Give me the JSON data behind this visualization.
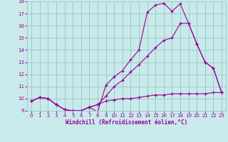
{
  "bg_color": "#c8eaea",
  "grid_color": "#a0c8c8",
  "line_color": "#990099",
  "marker": "+",
  "xlabel": "Windchill (Refroidissement éolien,°C)",
  "xlim": [
    -0.5,
    23.5
  ],
  "ylim": [
    9,
    18
  ],
  "xticks": [
    0,
    1,
    2,
    3,
    4,
    5,
    6,
    7,
    8,
    9,
    10,
    11,
    12,
    13,
    14,
    15,
    16,
    17,
    18,
    19,
    20,
    21,
    22,
    23
  ],
  "yticks": [
    9,
    10,
    11,
    12,
    13,
    14,
    15,
    16,
    17,
    18
  ],
  "series": [
    {
      "x": [
        0,
        1,
        2,
        3,
        4,
        5,
        6,
        7,
        8,
        9,
        10,
        11,
        12,
        13,
        14,
        15,
        16,
        17,
        18,
        19,
        20,
        21,
        22,
        23
      ],
      "y": [
        9.8,
        10.1,
        10.0,
        9.5,
        9.1,
        9.0,
        9.0,
        9.3,
        9.5,
        9.8,
        9.9,
        10.0,
        10.0,
        10.1,
        10.2,
        10.3,
        10.3,
        10.4,
        10.4,
        10.4,
        10.4,
        10.4,
        10.5,
        10.5
      ]
    },
    {
      "x": [
        0,
        1,
        2,
        3,
        4,
        5,
        6,
        7,
        8,
        9,
        10,
        11,
        12,
        13,
        14,
        15,
        16,
        17,
        18,
        19,
        20,
        21,
        22,
        23
      ],
      "y": [
        9.8,
        10.1,
        10.0,
        9.5,
        9.1,
        9.0,
        9.0,
        9.3,
        9.5,
        10.2,
        11.0,
        11.5,
        12.2,
        12.8,
        13.5,
        14.2,
        14.8,
        15.0,
        16.2,
        16.2,
        14.5,
        13.0,
        12.5,
        10.5
      ]
    },
    {
      "x": [
        0,
        1,
        2,
        3,
        4,
        5,
        6,
        7,
        8,
        9,
        10,
        11,
        12,
        13,
        14,
        15,
        16,
        17,
        18,
        19,
        20,
        21,
        22,
        23
      ],
      "y": [
        9.8,
        10.1,
        10.0,
        9.5,
        9.1,
        9.0,
        9.0,
        9.3,
        8.9,
        11.1,
        11.8,
        12.3,
        13.2,
        14.0,
        17.1,
        17.7,
        17.85,
        17.2,
        17.8,
        16.2,
        14.5,
        13.0,
        12.5,
        10.5
      ]
    }
  ]
}
